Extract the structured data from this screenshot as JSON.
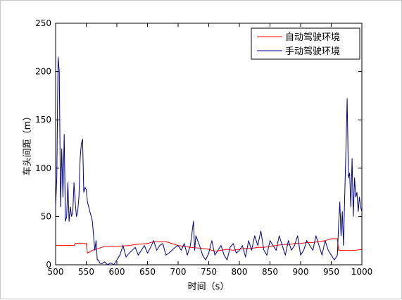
{
  "chart_data": {
    "type": "line",
    "title": "",
    "xlabel": "时间（s）",
    "ylabel": "车头间距（m）",
    "xlim": [
      500,
      1000
    ],
    "ylim": [
      0,
      250
    ],
    "xticks": [
      "500",
      "550",
      "600",
      "650",
      "700",
      "750",
      "800",
      "850",
      "900",
      "950",
      "1000"
    ],
    "yticks": [
      "0",
      "50",
      "100",
      "150",
      "200",
      "250"
    ],
    "grid": false,
    "legend_position": "top-right",
    "series": [
      {
        "name": "自动驾驶环境",
        "color": "#ff0000",
        "x": [
          500,
          530,
          532,
          550,
          552,
          560,
          570,
          580,
          600,
          620,
          630,
          650,
          660,
          680,
          700,
          710,
          720,
          740,
          750,
          760,
          770,
          780,
          790,
          800,
          810,
          820,
          830,
          840,
          850,
          860,
          870,
          880,
          890,
          900,
          910,
          920,
          930,
          940,
          950,
          960,
          962,
          970,
          980,
          990,
          1000
        ],
        "y": [
          20,
          20,
          22,
          22,
          12,
          15,
          17,
          19,
          19,
          20,
          21,
          22,
          24,
          24,
          20,
          19,
          18,
          17,
          16,
          14,
          15,
          16,
          15,
          16,
          17,
          17,
          18,
          18,
          19,
          20,
          21,
          21,
          22,
          22,
          23,
          23,
          24,
          25,
          27,
          27,
          15,
          15,
          15,
          15,
          16
        ]
      },
      {
        "name": "手动驾驶环境",
        "color": "#000080",
        "x": [
          500,
          502,
          504,
          506,
          508,
          510,
          512,
          514,
          516,
          518,
          520,
          522,
          524,
          526,
          528,
          530,
          532,
          534,
          536,
          538,
          540,
          542,
          544,
          546,
          548,
          550,
          552,
          554,
          556,
          558,
          560,
          562,
          564,
          566,
          568,
          570,
          572,
          575,
          580,
          585,
          590,
          595,
          600,
          605,
          610,
          615,
          620,
          625,
          630,
          635,
          640,
          645,
          650,
          655,
          660,
          665,
          670,
          675,
          680,
          685,
          690,
          695,
          700,
          705,
          710,
          715,
          720,
          725,
          727,
          729,
          735,
          740,
          745,
          750,
          755,
          760,
          765,
          770,
          775,
          780,
          785,
          790,
          795,
          800,
          805,
          810,
          815,
          820,
          825,
          830,
          835,
          840,
          845,
          850,
          855,
          860,
          865,
          870,
          875,
          880,
          885,
          890,
          895,
          900,
          905,
          910,
          915,
          920,
          925,
          930,
          935,
          940,
          945,
          950,
          955,
          960,
          962,
          964,
          966,
          968,
          970,
          972,
          974,
          976,
          978,
          980,
          982,
          984,
          986,
          988,
          990,
          992,
          994,
          996,
          998,
          1000
        ],
        "y": [
          60,
          90,
          215,
          200,
          60,
          120,
          70,
          135,
          45,
          50,
          85,
          45,
          60,
          50,
          55,
          85,
          65,
          50,
          55,
          70,
          110,
          125,
          130,
          75,
          80,
          78,
          65,
          60,
          55,
          50,
          45,
          30,
          15,
          25,
          5,
          5,
          2,
          1,
          3,
          0,
          2,
          0,
          5,
          10,
          20,
          8,
          12,
          15,
          18,
          10,
          15,
          20,
          12,
          18,
          25,
          15,
          20,
          22,
          10,
          12,
          15,
          18,
          20,
          15,
          22,
          10,
          20,
          45,
          15,
          30,
          20,
          10,
          5,
          12,
          25,
          10,
          15,
          20,
          10,
          5,
          18,
          22,
          12,
          15,
          20,
          8,
          25,
          15,
          30,
          20,
          35,
          15,
          10,
          25,
          20,
          15,
          30,
          20,
          10,
          25,
          15,
          20,
          30,
          10,
          15,
          25,
          20,
          15,
          30,
          20,
          10,
          25,
          15,
          10,
          5,
          10,
          40,
          65,
          30,
          55,
          20,
          70,
          120,
          172,
          90,
          95,
          60,
          110,
          50,
          90,
          70,
          75,
          55,
          70,
          60,
          55
        ]
      }
    ]
  }
}
